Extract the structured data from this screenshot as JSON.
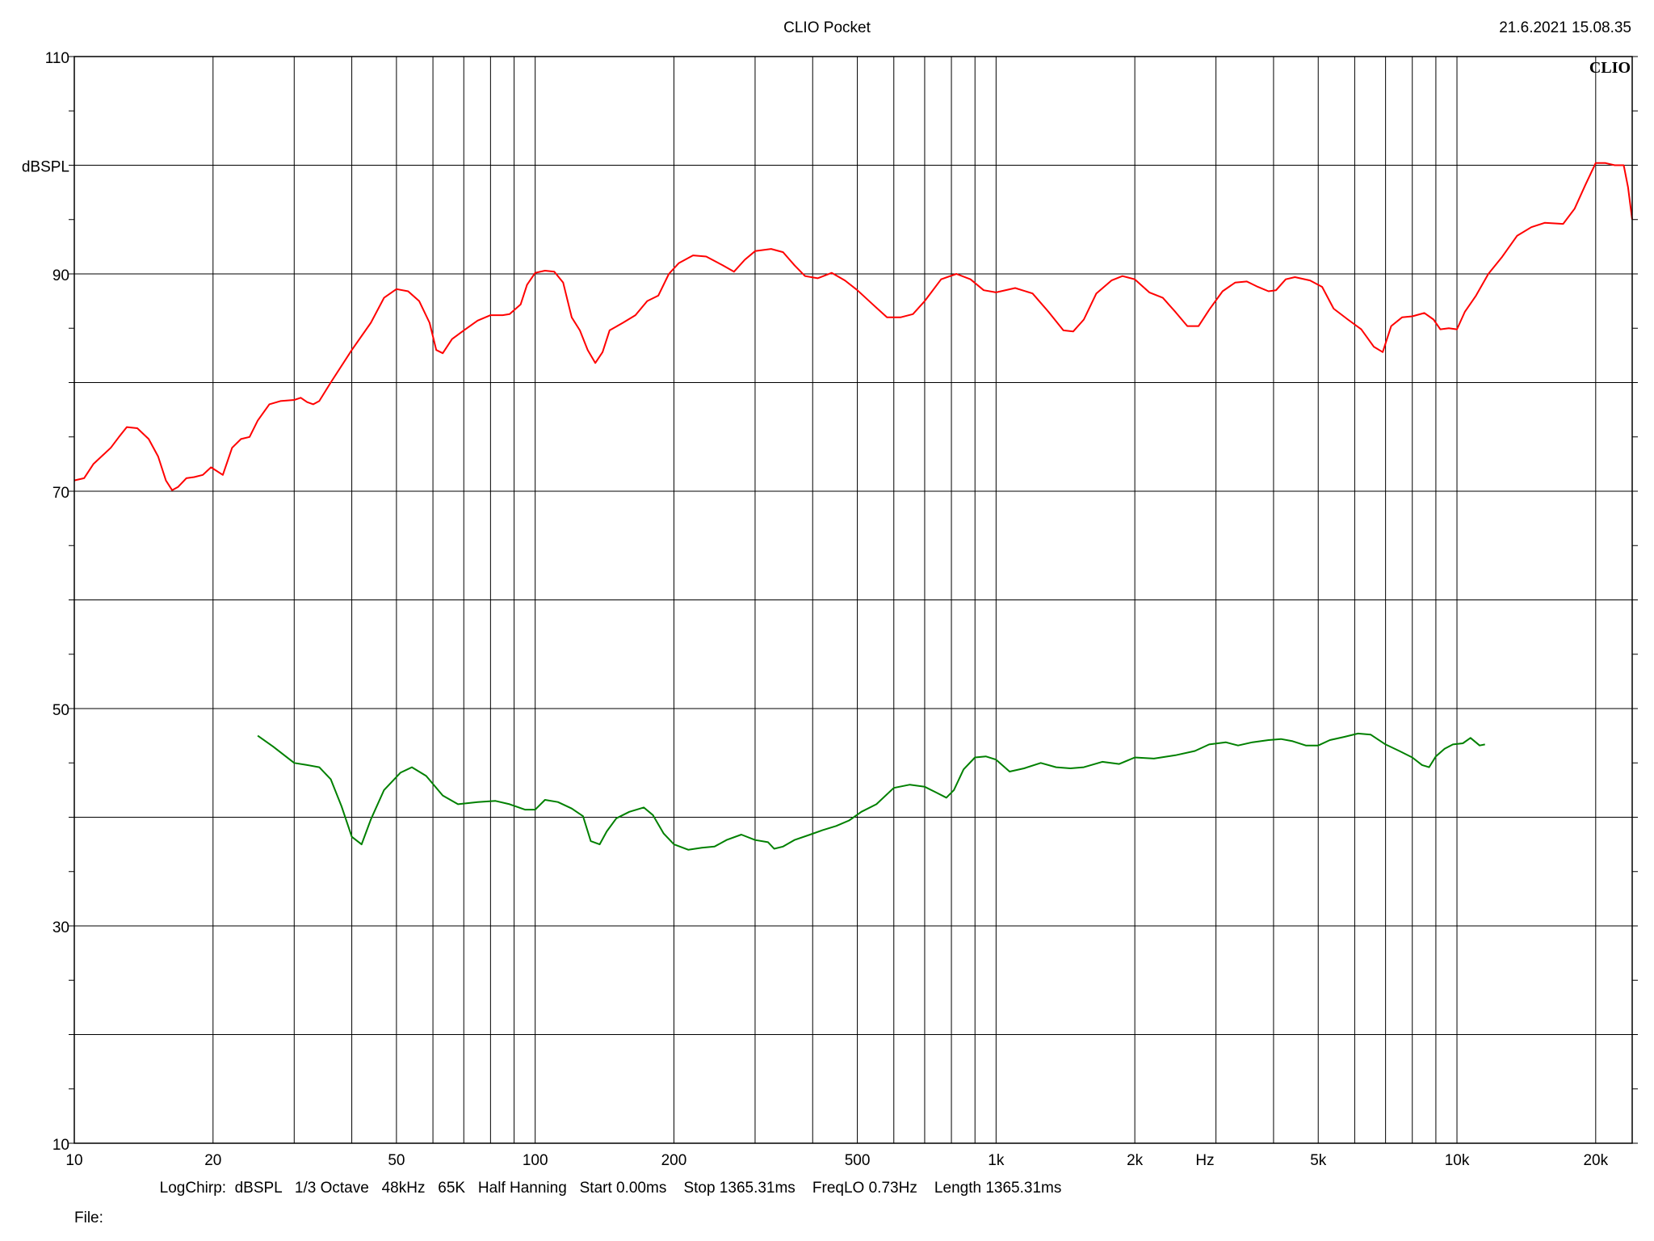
{
  "header": {
    "title": "CLIO Pocket",
    "timestamp": "21.6.2021 15.08.35",
    "logo": "CLIO"
  },
  "footer": {
    "info": "LogChirp:  dBSPL   1/3 Octave   48kHz   65K   Half Hanning   Start 0.00ms    Stop 1365.31ms    FreqLO 0.73Hz    Length 1365.31ms",
    "file_label": "File:"
  },
  "chart_data": {
    "type": "line",
    "title": "CLIO Pocket",
    "xlabel": "Hz",
    "ylabel": "dBSPL",
    "x_scale": "log",
    "xlim": [
      10,
      24000
    ],
    "ylim": [
      10,
      110
    ],
    "grid": true,
    "x_ticks": [
      {
        "value": 10,
        "label": "10"
      },
      {
        "value": 20,
        "label": "20"
      },
      {
        "value": 50,
        "label": "50"
      },
      {
        "value": 100,
        "label": "100"
      },
      {
        "value": 200,
        "label": "200"
      },
      {
        "value": 500,
        "label": "500"
      },
      {
        "value": 1000,
        "label": "1k"
      },
      {
        "value": 2000,
        "label": "2k"
      },
      {
        "value": 5000,
        "label": "5k"
      },
      {
        "value": 10000,
        "label": "10k"
      },
      {
        "value": 20000,
        "label": "20k"
      }
    ],
    "y_ticks": [
      {
        "value": 110,
        "label": "110"
      },
      {
        "value": 90,
        "label": "90"
      },
      {
        "value": 70,
        "label": "70"
      },
      {
        "value": 50,
        "label": "50"
      },
      {
        "value": 30,
        "label": "30"
      },
      {
        "value": 10,
        "label": "10"
      }
    ],
    "series": [
      {
        "color": "#ff0000",
        "points": [
          [
            10,
            71
          ],
          [
            10.5,
            71.2
          ],
          [
            11,
            72.5
          ],
          [
            12,
            74
          ],
          [
            12.5,
            75
          ],
          [
            13,
            75.9
          ],
          [
            13.7,
            75.8
          ],
          [
            14.5,
            74.8
          ],
          [
            15.2,
            73.2
          ],
          [
            15.8,
            71
          ],
          [
            16.3,
            70.1
          ],
          [
            16.8,
            70.4
          ],
          [
            17.5,
            71.2
          ],
          [
            18.2,
            71.3
          ],
          [
            19,
            71.5
          ],
          [
            19.8,
            72.2
          ],
          [
            21,
            71.5
          ],
          [
            22,
            74
          ],
          [
            23,
            74.8
          ],
          [
            24,
            75
          ],
          [
            25,
            76.5
          ],
          [
            26.5,
            78
          ],
          [
            28,
            78.3
          ],
          [
            30,
            78.4
          ],
          [
            31,
            78.6
          ],
          [
            32,
            78.2
          ],
          [
            33,
            78
          ],
          [
            34,
            78.3
          ],
          [
            36,
            80
          ],
          [
            40,
            83
          ],
          [
            44,
            85.5
          ],
          [
            47,
            87.8
          ],
          [
            50,
            88.6
          ],
          [
            53,
            88.4
          ],
          [
            56,
            87.5
          ],
          [
            59,
            85.5
          ],
          [
            61,
            83
          ],
          [
            63,
            82.7
          ],
          [
            66,
            84
          ],
          [
            70,
            84.8
          ],
          [
            75,
            85.7
          ],
          [
            80,
            86.2
          ],
          [
            85,
            86.2
          ],
          [
            88,
            86.3
          ],
          [
            93,
            87.2
          ],
          [
            96,
            89
          ],
          [
            100,
            90.1
          ],
          [
            105,
            90.3
          ],
          [
            110,
            90.2
          ],
          [
            115,
            89.2
          ],
          [
            120,
            86
          ],
          [
            125,
            84.8
          ],
          [
            130,
            83
          ],
          [
            135,
            81.8
          ],
          [
            140,
            82.8
          ],
          [
            145,
            84.8
          ],
          [
            155,
            85.5
          ],
          [
            165,
            86.2
          ],
          [
            175,
            87.5
          ],
          [
            185,
            88
          ],
          [
            195,
            90
          ],
          [
            205,
            91
          ],
          [
            220,
            91.7
          ],
          [
            235,
            91.6
          ],
          [
            255,
            90.8
          ],
          [
            270,
            90.2
          ],
          [
            285,
            91.3
          ],
          [
            300,
            92.1
          ],
          [
            325,
            92.3
          ],
          [
            345,
            92
          ],
          [
            365,
            90.8
          ],
          [
            385,
            89.8
          ],
          [
            410,
            89.6
          ],
          [
            440,
            90.1
          ],
          [
            470,
            89.4
          ],
          [
            500,
            88.5
          ],
          [
            540,
            87.2
          ],
          [
            580,
            86
          ],
          [
            620,
            86
          ],
          [
            660,
            86.3
          ],
          [
            700,
            87.5
          ],
          [
            760,
            89.5
          ],
          [
            820,
            90
          ],
          [
            880,
            89.5
          ],
          [
            940,
            88.5
          ],
          [
            1000,
            88.3
          ],
          [
            1100,
            88.7
          ],
          [
            1200,
            88.2
          ],
          [
            1300,
            86.5
          ],
          [
            1400,
            84.8
          ],
          [
            1470,
            84.7
          ],
          [
            1550,
            85.8
          ],
          [
            1650,
            88.2
          ],
          [
            1780,
            89.4
          ],
          [
            1880,
            89.8
          ],
          [
            2000,
            89.5
          ],
          [
            2150,
            88.3
          ],
          [
            2300,
            87.8
          ],
          [
            2450,
            86.5
          ],
          [
            2600,
            85.2
          ],
          [
            2750,
            85.2
          ],
          [
            2900,
            86.7
          ],
          [
            3100,
            88.4
          ],
          [
            3300,
            89.2
          ],
          [
            3500,
            89.3
          ],
          [
            3700,
            88.8
          ],
          [
            3900,
            88.4
          ],
          [
            4050,
            88.5
          ],
          [
            4250,
            89.5
          ],
          [
            4450,
            89.7
          ],
          [
            4800,
            89.4
          ],
          [
            5100,
            88.8
          ],
          [
            5400,
            86.8
          ],
          [
            5800,
            85.8
          ],
          [
            6200,
            84.9
          ],
          [
            6600,
            83.3
          ],
          [
            6900,
            82.8
          ],
          [
            7200,
            85.2
          ],
          [
            7600,
            86
          ],
          [
            8000,
            86.1
          ],
          [
            8500,
            86.4
          ],
          [
            8900,
            85.8
          ],
          [
            9200,
            84.9
          ],
          [
            9600,
            85
          ],
          [
            10000,
            84.9
          ],
          [
            10400,
            86.5
          ],
          [
            11000,
            88
          ],
          [
            11700,
            90
          ],
          [
            12500,
            91.5
          ],
          [
            13500,
            93.5
          ],
          [
            14500,
            94.3
          ],
          [
            15500,
            94.7
          ],
          [
            17000,
            94.6
          ],
          [
            18000,
            96
          ],
          [
            19000,
            98.2
          ],
          [
            20000,
            100.2
          ],
          [
            21000,
            100.2
          ],
          [
            22000,
            100
          ],
          [
            23000,
            100
          ],
          [
            23500,
            98
          ],
          [
            24000,
            95
          ]
        ]
      },
      {
        "color": "#008000",
        "points": [
          [
            25,
            47.5
          ],
          [
            27,
            46.5
          ],
          [
            30,
            45
          ],
          [
            32,
            44.8
          ],
          [
            34,
            44.6
          ],
          [
            36,
            43.5
          ],
          [
            38,
            41
          ],
          [
            40,
            38.2
          ],
          [
            42,
            37.5
          ],
          [
            44,
            39.8
          ],
          [
            47,
            42.5
          ],
          [
            51,
            44.1
          ],
          [
            54,
            44.6
          ],
          [
            58,
            43.8
          ],
          [
            63,
            42
          ],
          [
            68,
            41.2
          ],
          [
            75,
            41.4
          ],
          [
            82,
            41.5
          ],
          [
            88,
            41.2
          ],
          [
            95,
            40.7
          ],
          [
            100,
            40.7
          ],
          [
            105,
            41.6
          ],
          [
            112,
            41.4
          ],
          [
            120,
            40.8
          ],
          [
            127,
            40.1
          ],
          [
            132,
            37.8
          ],
          [
            138,
            37.5
          ],
          [
            143,
            38.7
          ],
          [
            150,
            39.9
          ],
          [
            160,
            40.5
          ],
          [
            172,
            40.9
          ],
          [
            180,
            40.2
          ],
          [
            190,
            38.5
          ],
          [
            200,
            37.5
          ],
          [
            215,
            37
          ],
          [
            230,
            37.2
          ],
          [
            245,
            37.3
          ],
          [
            260,
            37.9
          ],
          [
            280,
            38.4
          ],
          [
            300,
            37.9
          ],
          [
            320,
            37.7
          ],
          [
            330,
            37.1
          ],
          [
            345,
            37.3
          ],
          [
            365,
            37.9
          ],
          [
            395,
            38.4
          ],
          [
            420,
            38.8
          ],
          [
            450,
            39.2
          ],
          [
            480,
            39.7
          ],
          [
            510,
            40.5
          ],
          [
            550,
            41.2
          ],
          [
            600,
            42.7
          ],
          [
            650,
            43
          ],
          [
            700,
            42.8
          ],
          [
            740,
            42.3
          ],
          [
            780,
            41.8
          ],
          [
            810,
            42.5
          ],
          [
            850,
            44.4
          ],
          [
            900,
            45.5
          ],
          [
            950,
            45.6
          ],
          [
            1000,
            45.3
          ],
          [
            1070,
            44.2
          ],
          [
            1150,
            44.5
          ],
          [
            1250,
            45
          ],
          [
            1350,
            44.6
          ],
          [
            1450,
            44.5
          ],
          [
            1550,
            44.6
          ],
          [
            1700,
            45.1
          ],
          [
            1850,
            44.9
          ],
          [
            2000,
            45.5
          ],
          [
            2200,
            45.4
          ],
          [
            2450,
            45.7
          ],
          [
            2700,
            46.1
          ],
          [
            2900,
            46.7
          ],
          [
            3150,
            46.9
          ],
          [
            3350,
            46.6
          ],
          [
            3600,
            46.9
          ],
          [
            3900,
            47.1
          ],
          [
            4150,
            47.2
          ],
          [
            4400,
            47
          ],
          [
            4700,
            46.6
          ],
          [
            5000,
            46.6
          ],
          [
            5300,
            47.1
          ],
          [
            5700,
            47.4
          ],
          [
            6100,
            47.7
          ],
          [
            6500,
            47.6
          ],
          [
            7000,
            46.7
          ],
          [
            7500,
            46.1
          ],
          [
            8000,
            45.5
          ],
          [
            8400,
            44.8
          ],
          [
            8700,
            44.6
          ],
          [
            9000,
            45.6
          ],
          [
            9400,
            46.3
          ],
          [
            9800,
            46.7
          ],
          [
            10300,
            46.8
          ],
          [
            10700,
            47.3
          ],
          [
            11200,
            46.6
          ],
          [
            11500,
            46.7
          ]
        ]
      }
    ]
  }
}
